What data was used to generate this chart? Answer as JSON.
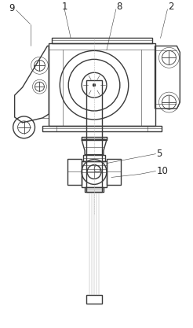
{
  "bg_color": "#ffffff",
  "line_color": "#3a3a3a",
  "light_line": "#aaaaaa",
  "label_color": "#222222",
  "fig_width": 2.46,
  "fig_height": 4.17,
  "dpi": 100
}
